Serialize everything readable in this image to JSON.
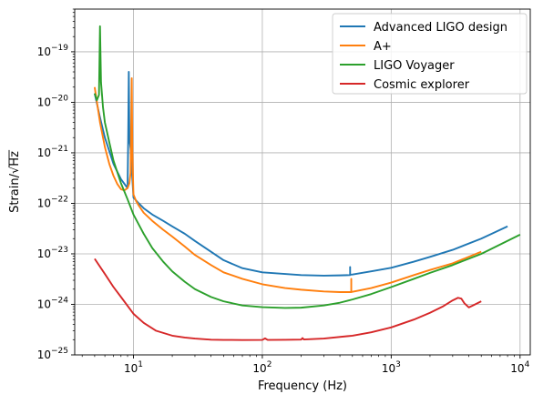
{
  "chart_data": {
    "type": "line",
    "xlabel": "Frequency (Hz)",
    "ylabel_prefix": "Strain/",
    "ylabel_radicand": "Hz",
    "xscale": "log",
    "yscale": "log",
    "xlim": [
      3.5,
      12000
    ],
    "ylim": [
      1e-25,
      7e-19
    ],
    "grid": true,
    "legend_position": "top-right",
    "xticks": [
      {
        "value": 10,
        "base": "10",
        "exp": "1"
      },
      {
        "value": 100,
        "base": "10",
        "exp": "2"
      },
      {
        "value": 1000,
        "base": "10",
        "exp": "3"
      },
      {
        "value": 10000,
        "base": "10",
        "exp": "4"
      }
    ],
    "yticks": [
      {
        "value": 1e-25,
        "base": "10",
        "exp": "−25"
      },
      {
        "value": 1e-24,
        "base": "10",
        "exp": "−24"
      },
      {
        "value": 1e-23,
        "base": "10",
        "exp": "−23"
      },
      {
        "value": 1e-22,
        "base": "10",
        "exp": "−22"
      },
      {
        "value": 1e-21,
        "base": "10",
        "exp": "−21"
      },
      {
        "value": 1e-20,
        "base": "10",
        "exp": "−20"
      },
      {
        "value": 1e-19,
        "base": "10",
        "exp": "−19"
      }
    ],
    "series": [
      {
        "name": "Advanced LIGO design",
        "color": "#1f77b4",
        "x": [
          5,
          5.5,
          6,
          7,
          8,
          9,
          9.1,
          9.2,
          9.3,
          9.4,
          9.5,
          10,
          11,
          12,
          14,
          17,
          20,
          25,
          30,
          40,
          50,
          70,
          100,
          150,
          200,
          300,
          400,
          480,
          480,
          480,
          500,
          700,
          1000,
          1500,
          2000,
          3000,
          5000,
          8000
        ],
        "y": [
          1.5e-20,
          5e-21,
          2e-21,
          6e-22,
          3e-22,
          2e-22,
          1.8e-21,
          4e-20,
          1.8e-21,
          1.5e-21,
          1.2e-21,
          1.3e-22,
          1e-22,
          8e-23,
          6e-23,
          4.5e-23,
          3.5e-23,
          2.5e-23,
          1.8e-23,
          1.1e-23,
          7.5e-24,
          5.2e-24,
          4.3e-24,
          4e-24,
          3.8e-24,
          3.7e-24,
          3.75e-24,
          3.8e-24,
          5.5e-24,
          3.85e-24,
          3.9e-24,
          4.5e-24,
          5.3e-24,
          7e-24,
          8.7e-24,
          1.2e-23,
          2e-23,
          3.5e-23
        ]
      },
      {
        "name": "A+",
        "color": "#ff7f0e",
        "x": [
          5,
          5.5,
          6,
          6.5,
          7,
          7.5,
          8,
          8.5,
          9,
          9.3,
          9.5,
          9.7,
          9.8,
          10,
          10.5,
          11,
          12,
          14,
          17,
          20,
          25,
          30,
          40,
          50,
          70,
          100,
          150,
          200,
          300,
          400,
          480,
          490,
          490,
          490,
          500,
          700,
          1000,
          1500,
          2000,
          3000,
          5000
        ],
        "y": [
          2e-20,
          4e-21,
          1.3e-21,
          6e-22,
          3.5e-22,
          2.4e-22,
          1.9e-22,
          1.8e-22,
          2e-22,
          2.5e-22,
          4e-22,
          3e-20,
          1e-21,
          1.5e-22,
          1.1e-22,
          9e-23,
          6.5e-23,
          4.5e-23,
          3e-23,
          2.2e-23,
          1.4e-23,
          9.5e-24,
          6e-24,
          4.3e-24,
          3.2e-24,
          2.5e-24,
          2.1e-24,
          1.95e-24,
          1.8e-24,
          1.75e-24,
          1.75e-24,
          1.75e-24,
          3.2e-24,
          1.75e-24,
          1.77e-24,
          2.1e-24,
          2.7e-24,
          3.8e-24,
          4.8e-24,
          6.5e-24,
          1.1e-23
        ]
      },
      {
        "name": "LIGO Voyager",
        "color": "#2ca02c",
        "x": [
          5,
          5.2,
          5.4,
          5.5,
          5.6,
          5.8,
          6,
          6.5,
          7,
          8,
          9,
          10,
          12,
          14,
          17,
          20,
          25,
          30,
          40,
          50,
          70,
          100,
          150,
          200,
          300,
          400,
          500,
          700,
          1000,
          1500,
          2000,
          3000,
          5000,
          10000
        ],
        "y": [
          1.5e-20,
          1.1e-20,
          1.4e-20,
          3.2e-19,
          2.5e-20,
          8e-21,
          4e-21,
          1.6e-21,
          7e-22,
          2.5e-22,
          1.2e-22,
          6e-23,
          2.5e-23,
          1.3e-23,
          7e-24,
          4.5e-24,
          2.8e-24,
          2e-24,
          1.4e-24,
          1.15e-24,
          9.5e-25,
          8.8e-25,
          8.5e-25,
          8.6e-25,
          9.5e-25,
          1.08e-24,
          1.25e-24,
          1.6e-24,
          2.2e-24,
          3.2e-24,
          4.2e-24,
          6e-24,
          1e-23,
          2.4e-23
        ]
      },
      {
        "name": "Cosmic explorer",
        "color": "#d62728",
        "x": [
          5,
          6,
          7,
          8,
          10,
          12,
          15,
          20,
          25,
          30,
          40,
          50,
          70,
          100,
          105,
          110,
          150,
          200,
          205,
          210,
          300,
          500,
          700,
          1000,
          1500,
          2000,
          2500,
          3000,
          3300,
          3500,
          3700,
          4000,
          4300,
          5000
        ],
        "y": [
          8e-24,
          4e-24,
          2.2e-24,
          1.4e-24,
          6.5e-25,
          4.3e-25,
          3e-25,
          2.4e-25,
          2.2e-25,
          2.1e-25,
          2e-25,
          1.98e-25,
          1.97e-25,
          1.98e-25,
          2.12e-25,
          1.98e-25,
          1.99e-25,
          2.01e-25,
          2.15e-25,
          2.02e-25,
          2.1e-25,
          2.4e-25,
          2.8e-25,
          3.5e-25,
          5e-25,
          6.8e-25,
          9e-25,
          1.2e-24,
          1.35e-24,
          1.3e-24,
          1.05e-24,
          8.7e-25,
          9.5e-25,
          1.15e-24
        ]
      }
    ]
  }
}
